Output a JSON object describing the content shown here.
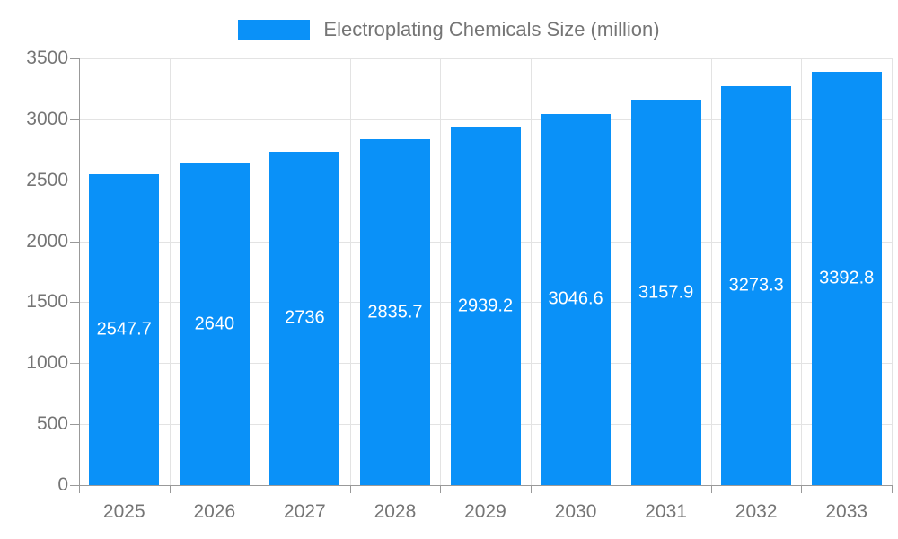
{
  "legend": {
    "label": "Electroplating Chemicals Size (million)"
  },
  "chart_data": {
    "type": "bar",
    "title": "Electroplating Chemicals Size (million)",
    "categories": [
      "2025",
      "2026",
      "2027",
      "2028",
      "2029",
      "2030",
      "2031",
      "2032",
      "2033"
    ],
    "values": [
      2547.7,
      2640,
      2736,
      2835.7,
      2939.2,
      3046.6,
      3157.9,
      3273.3,
      3392.8
    ],
    "value_labels": [
      "2547.7",
      "2640",
      "2736",
      "2835.7",
      "2939.2",
      "3046.6",
      "3157.9",
      "3273.3",
      "3392.8"
    ],
    "xlabel": "",
    "ylabel": "",
    "ylim": [
      0,
      3500
    ],
    "yticks": [
      0,
      500,
      1000,
      1500,
      2000,
      2500,
      3000,
      3500
    ],
    "grid": true,
    "legend_position": "top",
    "colors": {
      "bar": "#0a91f8",
      "grid": "#e3e3e3",
      "axis": "#999999",
      "tick_text": "#757575",
      "value_text": "#ffffff",
      "background": "#ffffff"
    }
  }
}
